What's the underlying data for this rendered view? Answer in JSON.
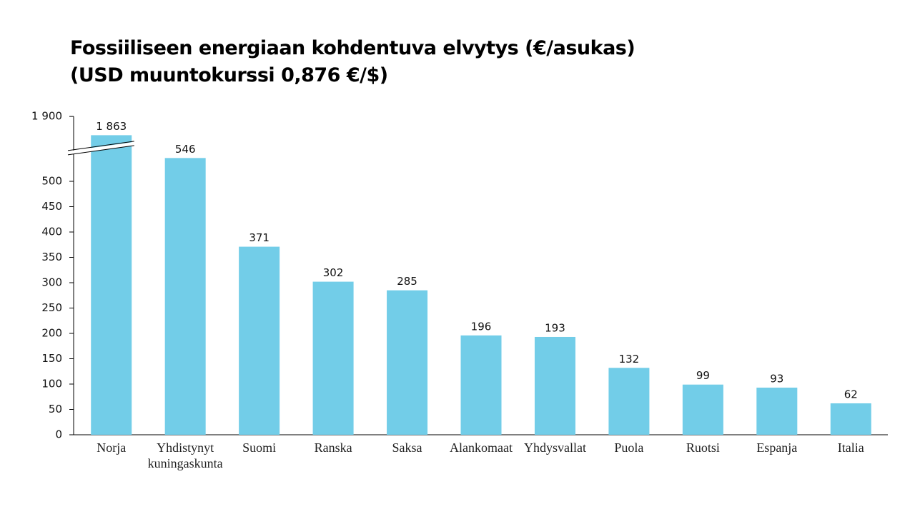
{
  "chart_data": {
    "type": "bar",
    "title": "Fossiiliseen energiaan kohdentuva elvytys (€/asukas)",
    "subtitle": "(USD muuntokurssi 0,876 €/$)",
    "categories": [
      "Norja",
      "Yhdistynyt kuningaskunta",
      "Suomi",
      "Ranska",
      "Saksa",
      "Alankomaat",
      "Yhdysvallat",
      "Puola",
      "Ruotsi",
      "Espanja",
      "Italia"
    ],
    "values": [
      1863,
      546,
      371,
      302,
      285,
      196,
      193,
      132,
      99,
      93,
      62
    ],
    "value_labels": [
      "1 863",
      "546",
      "371",
      "302",
      "285",
      "196",
      "193",
      "132",
      "99",
      "93",
      "62"
    ],
    "color": "#72cde8",
    "ylim": [
      0,
      1900
    ],
    "yticks": [
      0,
      50,
      100,
      150,
      200,
      250,
      300,
      350,
      400,
      450,
      500,
      {
        "value": 1900,
        "label": "1 900"
      }
    ],
    "axis_break": [
      565,
      1837
    ],
    "grid": false
  }
}
